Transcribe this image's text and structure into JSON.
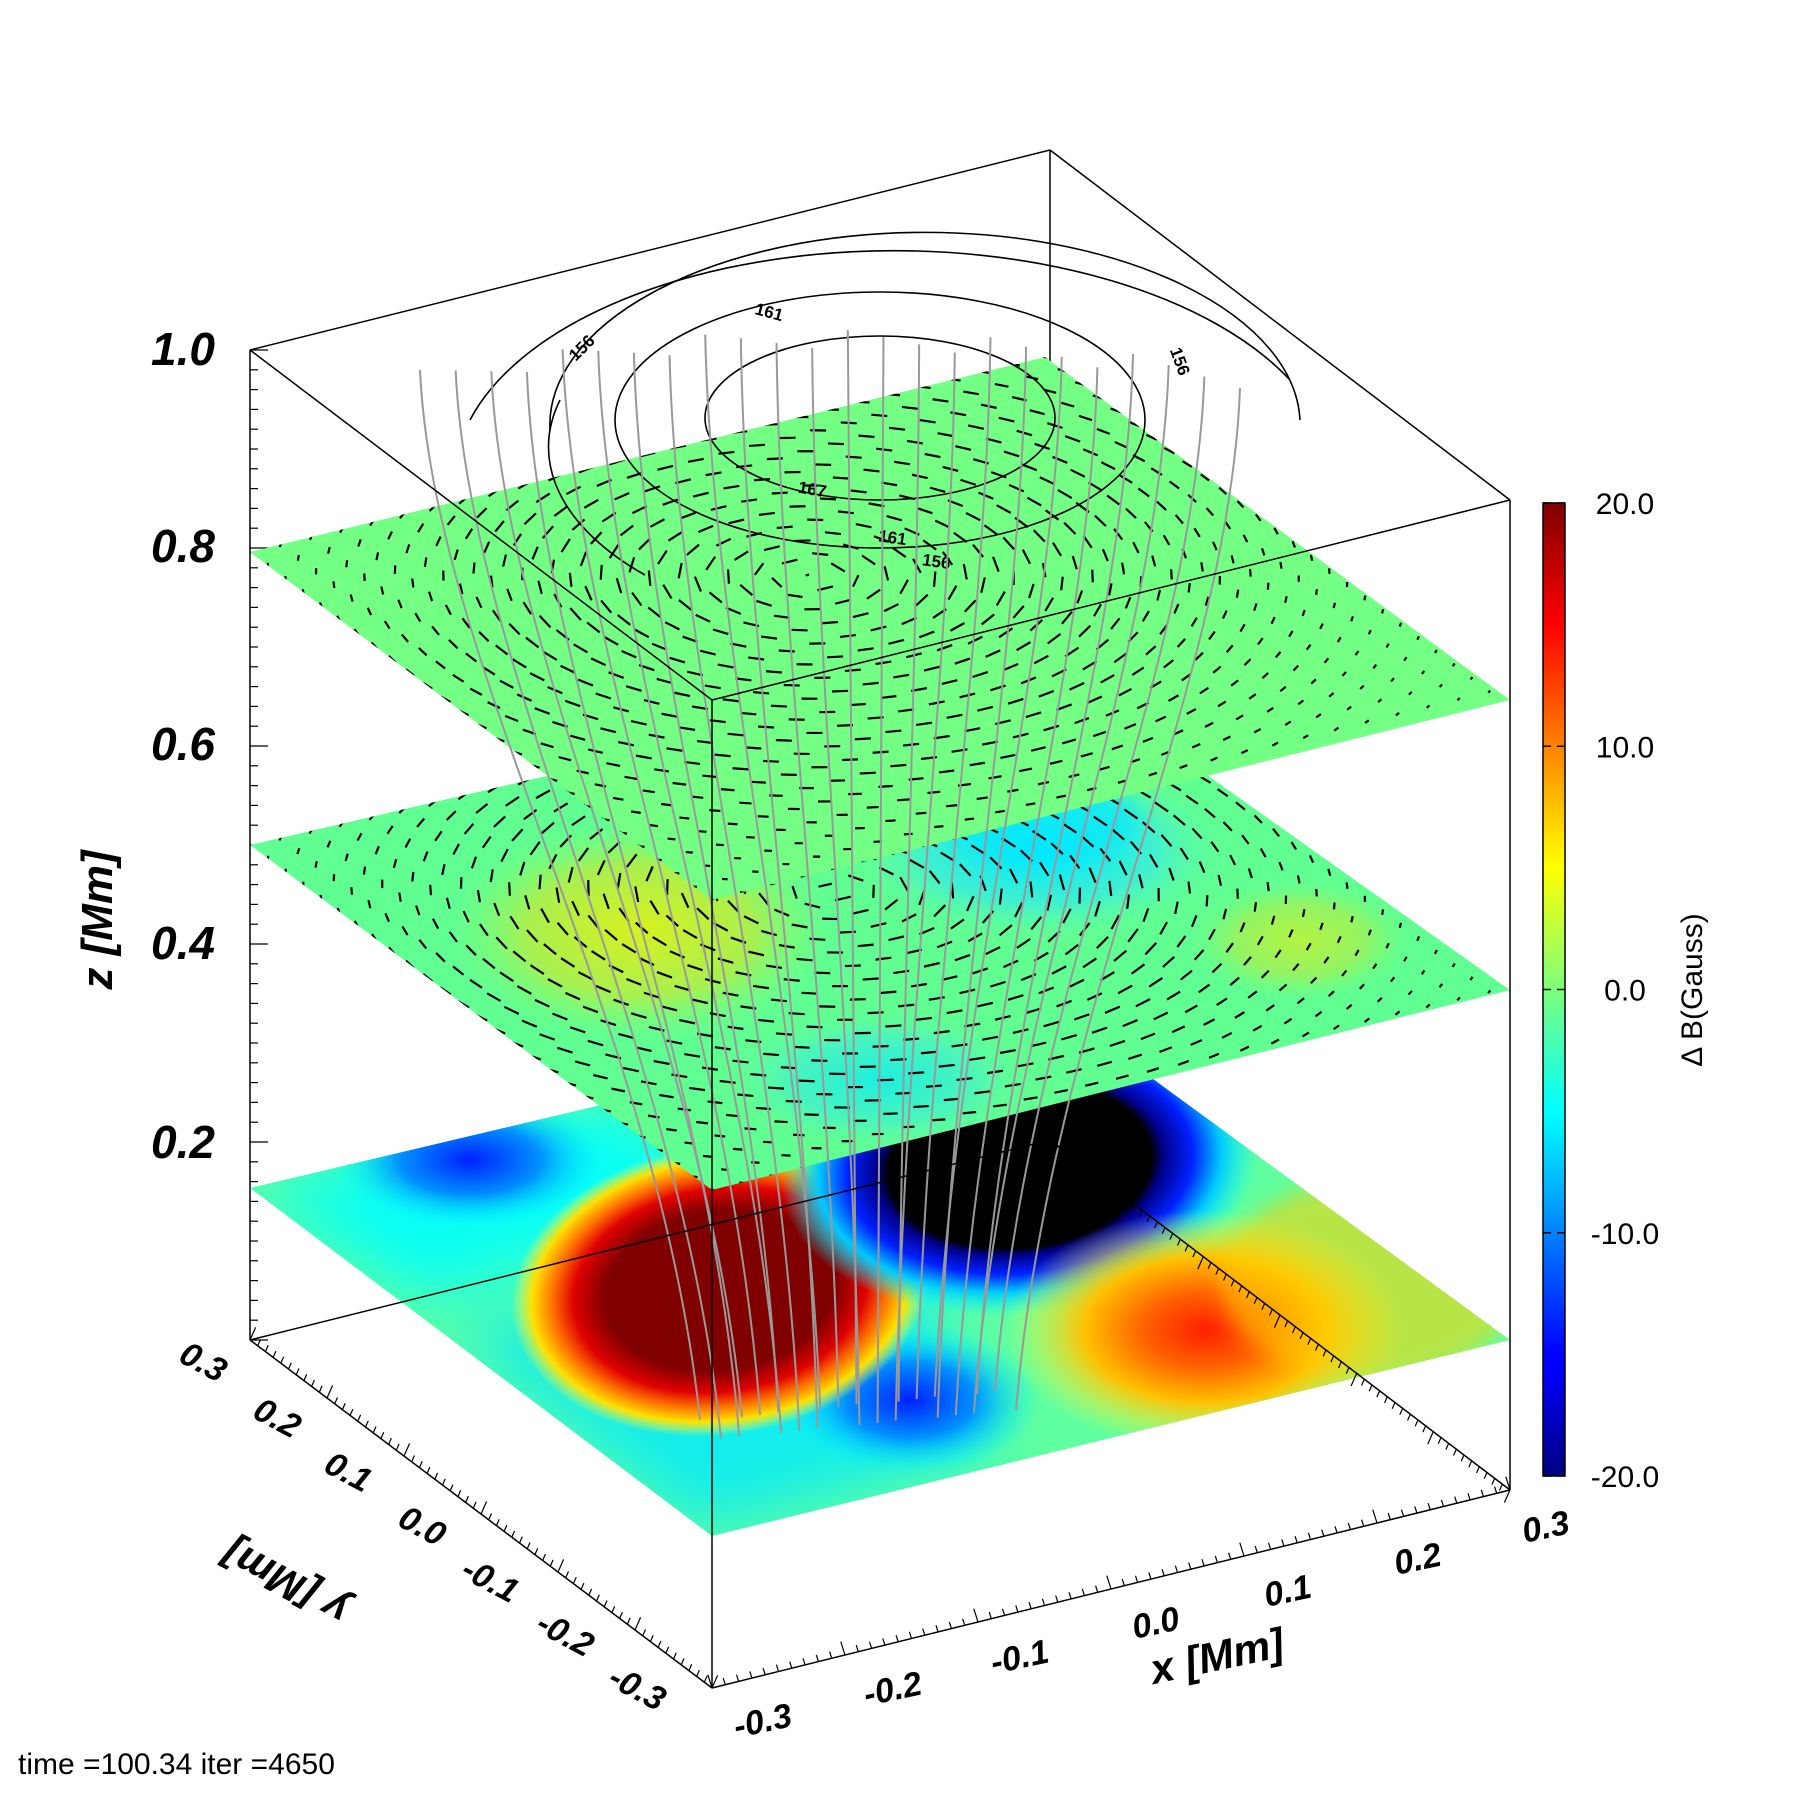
{
  "chart_data": {
    "type": "3d-surface-slices",
    "colorbar": {
      "label": "Δ B(Gauss)",
      "min": -20.0,
      "max": 20.0,
      "ticks": [
        "20.0",
        "10.0",
        "0.0",
        "-10.0",
        "-20.0"
      ],
      "tick_values": [
        20,
        10,
        0,
        -10,
        -20
      ],
      "colormap": "jet"
    },
    "axes": {
      "x": {
        "label": "x [Mm]",
        "range": [
          -0.3,
          0.3
        ],
        "ticks": [
          "-0.3",
          "-0.2",
          "-0.1",
          "0.0",
          "0.1",
          "0.2",
          "0.3"
        ]
      },
      "y": {
        "label": "y [Mm]",
        "range": [
          -0.3,
          0.3
        ],
        "ticks": [
          "-0.3",
          "-0.2",
          "-0.1",
          "0.0",
          "0.1",
          "0.2",
          "0.3"
        ]
      },
      "z": {
        "label": "z [Mm]",
        "range": [
          0.0,
          1.0
        ],
        "ticks": [
          "0.2",
          "0.4",
          "0.6",
          "0.8",
          "1.0"
        ]
      }
    },
    "slices": [
      {
        "z": 0.0,
        "field": "ΔB",
        "features": "positive lobe (~+20 G) at x≈-0.1, y≈0.05; negative lobe (≤-20 G) at x≈0.15, y≈0.1; weaker positive lobe at x≈0.25, y≈-0.05"
      },
      {
        "z": 0.4,
        "field": "ΔB with horizontal field arrows",
        "range_G": [
          -4,
          5
        ]
      },
      {
        "z": 0.8,
        "field": "ΔB with horizontal field arrows",
        "range_G": [
          -1,
          1
        ]
      }
    ],
    "contours": {
      "z": 1.0,
      "labels": [
        "156",
        "161",
        "167",
        "161",
        "156",
        "156"
      ]
    },
    "field_lines": {
      "count": 24,
      "color": "#999999"
    }
  },
  "footer": {
    "text": "time =100.34 iter =4650"
  }
}
